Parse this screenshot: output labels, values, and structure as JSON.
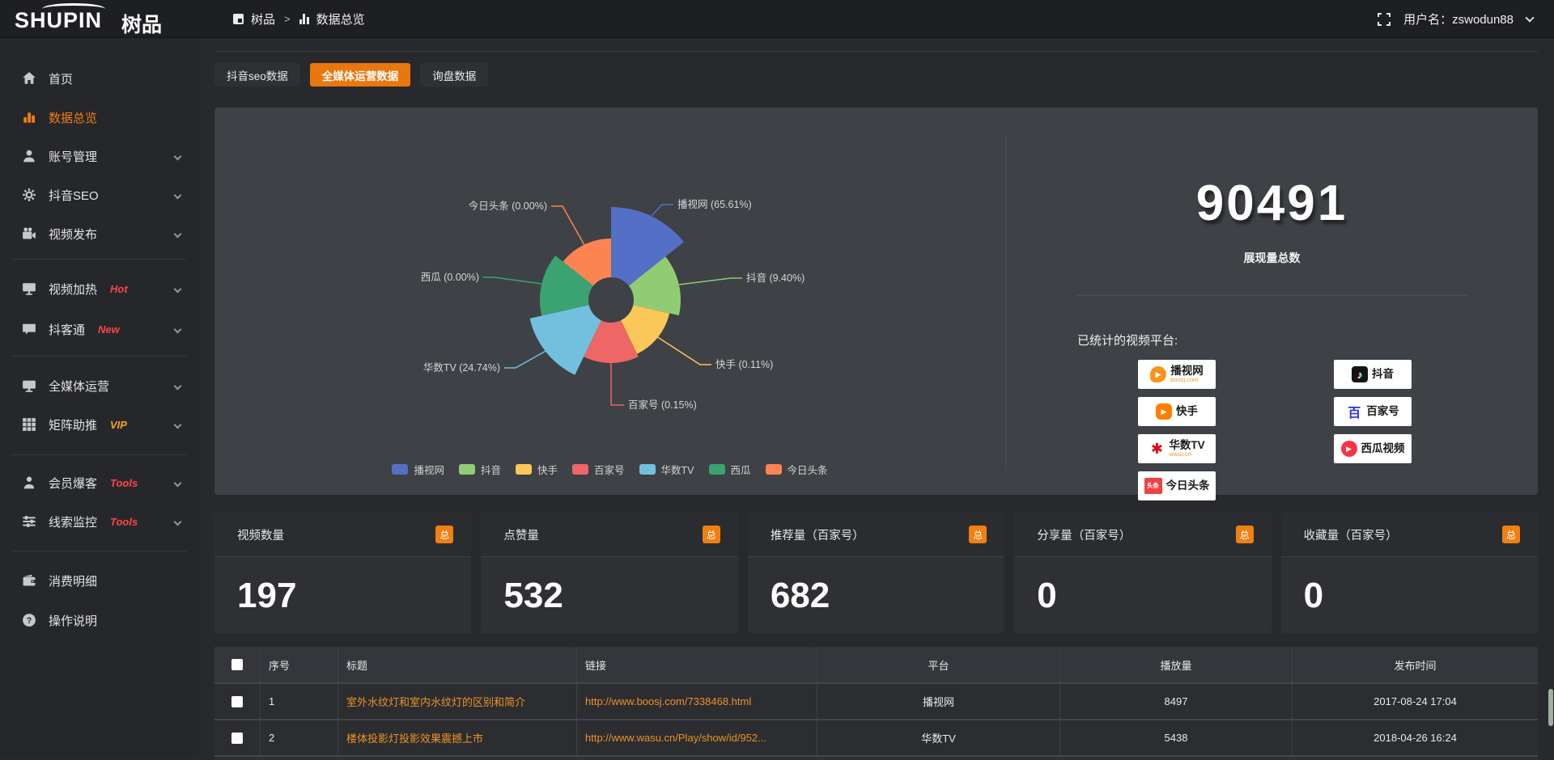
{
  "topbar": {
    "logo_en": "SHUPIN",
    "logo_cn": "树品",
    "breadcrumb_home": "树品",
    "breadcrumb_sep": ">",
    "breadcrumb_current": "数据总览",
    "user_label": "用户名：zswodun88"
  },
  "sidebar": {
    "items": [
      {
        "label": "首页",
        "icon": "home-icon"
      },
      {
        "label": "数据总览",
        "icon": "chart-icon",
        "active": true
      },
      {
        "label": "账号管理",
        "icon": "user-icon",
        "expandable": true
      },
      {
        "label": "抖音SEO",
        "icon": "gear-icon",
        "expandable": true
      },
      {
        "label": "视频发布",
        "icon": "camera-icon",
        "expandable": true
      },
      {
        "label": "视频加热",
        "icon": "screen-icon",
        "badge": "Hot",
        "badge_color": "#ff4545",
        "expandable": true
      },
      {
        "label": "抖客通",
        "icon": "chat-icon",
        "badge": "New",
        "badge_color": "#ff4545",
        "expandable": true
      },
      {
        "label": "全媒体运营",
        "icon": "monitor-icon",
        "expandable": true
      },
      {
        "label": "矩阵助推",
        "icon": "grid-icon",
        "badge": "VIP",
        "badge_color": "#f5a623",
        "expandable": true
      },
      {
        "label": "会员爆客",
        "icon": "person-icon",
        "badge": "Tools",
        "badge_color": "#ff4545",
        "expandable": true
      },
      {
        "label": "线索监控",
        "icon": "sliders-icon",
        "badge": "Tools",
        "badge_color": "#ff4545",
        "expandable": true
      },
      {
        "label": "消费明细",
        "icon": "wallet-icon"
      },
      {
        "label": "操作说明",
        "icon": "help-icon"
      }
    ]
  },
  "tabs": [
    {
      "label": "抖音seo数据",
      "active": false
    },
    {
      "label": "全媒体运营数据",
      "active": true
    },
    {
      "label": "询盘数据",
      "active": false
    }
  ],
  "chart_data": {
    "type": "pie",
    "style": "nightingale-rose",
    "slices": [
      {
        "name": "播视网",
        "pct": 65.61,
        "color": "#5470c6"
      },
      {
        "name": "抖音",
        "pct": 9.4,
        "color": "#91cc75"
      },
      {
        "name": "快手",
        "pct": 0.11,
        "color": "#fac858"
      },
      {
        "name": "百家号",
        "pct": 0.15,
        "color": "#ee6666"
      },
      {
        "name": "华数TV",
        "pct": 24.74,
        "color": "#73c0de"
      },
      {
        "name": "西瓜",
        "pct": 0.0,
        "color": "#3ba272"
      },
      {
        "name": "今日头条",
        "pct": 0.0,
        "color": "#fc8452"
      }
    ],
    "legend": [
      "播视网",
      "抖音",
      "快手",
      "百家号",
      "华数TV",
      "西瓜",
      "今日头条"
    ],
    "legend_position": "bottom",
    "label_format": "{name} ({pct}%)"
  },
  "summary": {
    "total": "90491",
    "total_label": "展现量总数",
    "platforms_title": "已统计的视频平台:",
    "platforms": [
      {
        "name": "播视网",
        "sub": "boosj.com",
        "mark": "play-icon",
        "mark_bg": "#f7941d"
      },
      {
        "name": "抖音",
        "mark": "note-icon",
        "mark_bg": "#141414"
      },
      {
        "name": "快手",
        "mark": "video-icon",
        "mark_bg": "#ff7f00"
      },
      {
        "name": "百家号",
        "mark": "bai-icon",
        "mark_color": "#2932e1"
      },
      {
        "name": "华数TV",
        "sub": "wasu.cn",
        "mark": "burst-icon",
        "mark_color": "#e60012"
      },
      {
        "name": "西瓜视频",
        "mark": "playcircle-icon",
        "mark_bg": "#fa3246"
      },
      {
        "name": "今日头条",
        "mark": "toutiao-icon",
        "mark_bg": "#f04142",
        "mark_text": "头条"
      }
    ]
  },
  "stat_cards": [
    {
      "label": "视频数量",
      "badge": "总",
      "value": "197"
    },
    {
      "label": "点赞量",
      "badge": "总",
      "value": "532"
    },
    {
      "label": "推荐量（百家号）",
      "badge": "总",
      "value": "682"
    },
    {
      "label": "分享量（百家号）",
      "badge": "总",
      "value": "0"
    },
    {
      "label": "收藏量（百家号）",
      "badge": "总",
      "value": "0"
    }
  ],
  "table": {
    "headers": [
      "",
      "序号",
      "标题",
      "链接",
      "平台",
      "播放量",
      "发布时间"
    ],
    "rows": [
      {
        "no": "1",
        "title": "室外水纹灯和室内水纹灯的区别和简介",
        "link": "http://www.boosj.com/7338468.html",
        "platform": "播视网",
        "views": "8497",
        "time": "2017-08-24 17:04"
      },
      {
        "no": "2",
        "title": "楼体投影灯投影效果震撼上市",
        "link": "http://www.wasu.cn/Play/show/id/952...",
        "platform": "华数TV",
        "views": "5438",
        "time": "2018-04-26 16:24"
      }
    ]
  },
  "colors": {
    "accent": "#e8770e",
    "link": "#ee9126",
    "panel": "#3e4145",
    "badge_red": "#ff4545",
    "badge_gold": "#f5a623"
  }
}
